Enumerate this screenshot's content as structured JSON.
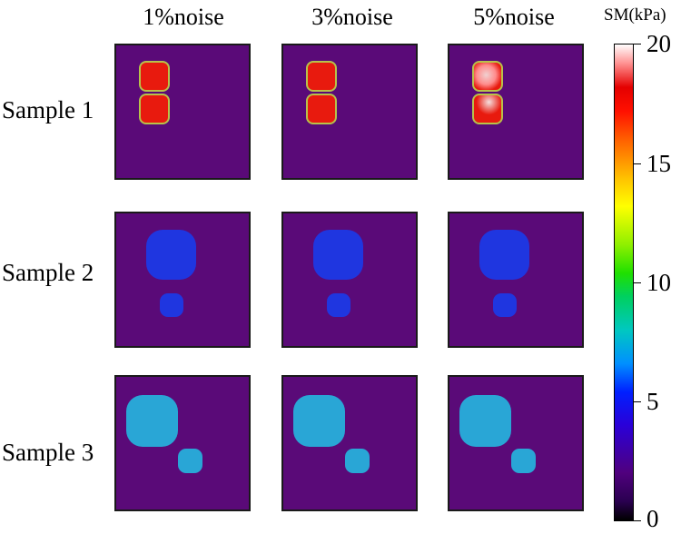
{
  "columns": [
    "1%noise",
    "3%noise",
    "5%noise"
  ],
  "rows": [
    "Sample 1",
    "Sample 2",
    "Sample 3"
  ],
  "colorbar": {
    "title": "SM(kPa)",
    "ticks": [
      "20",
      "15",
      "10",
      "5",
      "0"
    ]
  },
  "colors": {
    "background": "#5a0a78",
    "sample1_inclusion": "#e81a0e",
    "sample2_inclusion": "#1f36e0",
    "sample3_inclusion": "#29a6d6"
  }
}
